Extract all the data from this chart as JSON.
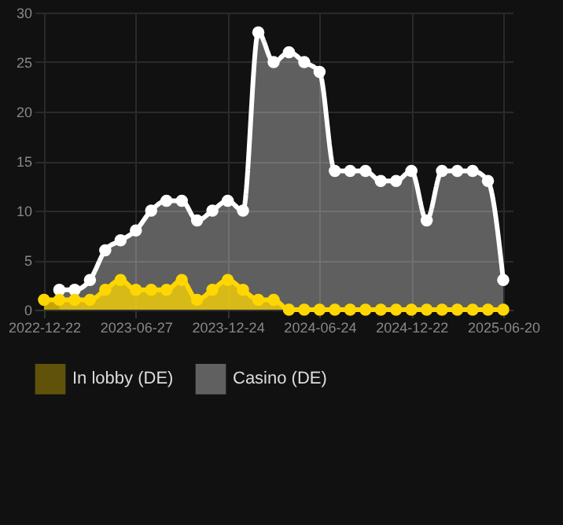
{
  "chart_data": {
    "type": "area",
    "categories": [
      "2022-12-22",
      null,
      null,
      null,
      null,
      null,
      "2023-06-27",
      null,
      null,
      null,
      null,
      null,
      "2023-12-24",
      null,
      null,
      null,
      null,
      null,
      "2024-06-24",
      null,
      null,
      null,
      null,
      null,
      "2024-12-22",
      null,
      null,
      null,
      null,
      null,
      "2025-06-20"
    ],
    "series": [
      {
        "name": "In lobby (DE)",
        "color": "#ffd700",
        "values": [
          1,
          1,
          1,
          1,
          2,
          3,
          2,
          2,
          2,
          3,
          1,
          2,
          3,
          2,
          1,
          1,
          0,
          0,
          0,
          0,
          0,
          0,
          0,
          0,
          0,
          0,
          0,
          0,
          0,
          0,
          0
        ]
      },
      {
        "name": "Casino (DE)",
        "color": "#ffffff",
        "values": [
          null,
          2,
          2,
          3,
          6,
          7,
          8,
          10,
          11,
          11,
          9,
          10,
          11,
          10,
          28,
          25,
          26,
          25,
          24,
          14,
          14,
          14,
          13,
          13,
          14,
          9,
          14,
          14,
          14,
          13,
          3
        ]
      }
    ],
    "ylim": [
      0,
      30
    ],
    "yticks": [
      0,
      5,
      10,
      15,
      20,
      25,
      30
    ],
    "grid": true,
    "legend": "bottom",
    "marker": "circle",
    "line_style": "solid"
  }
}
